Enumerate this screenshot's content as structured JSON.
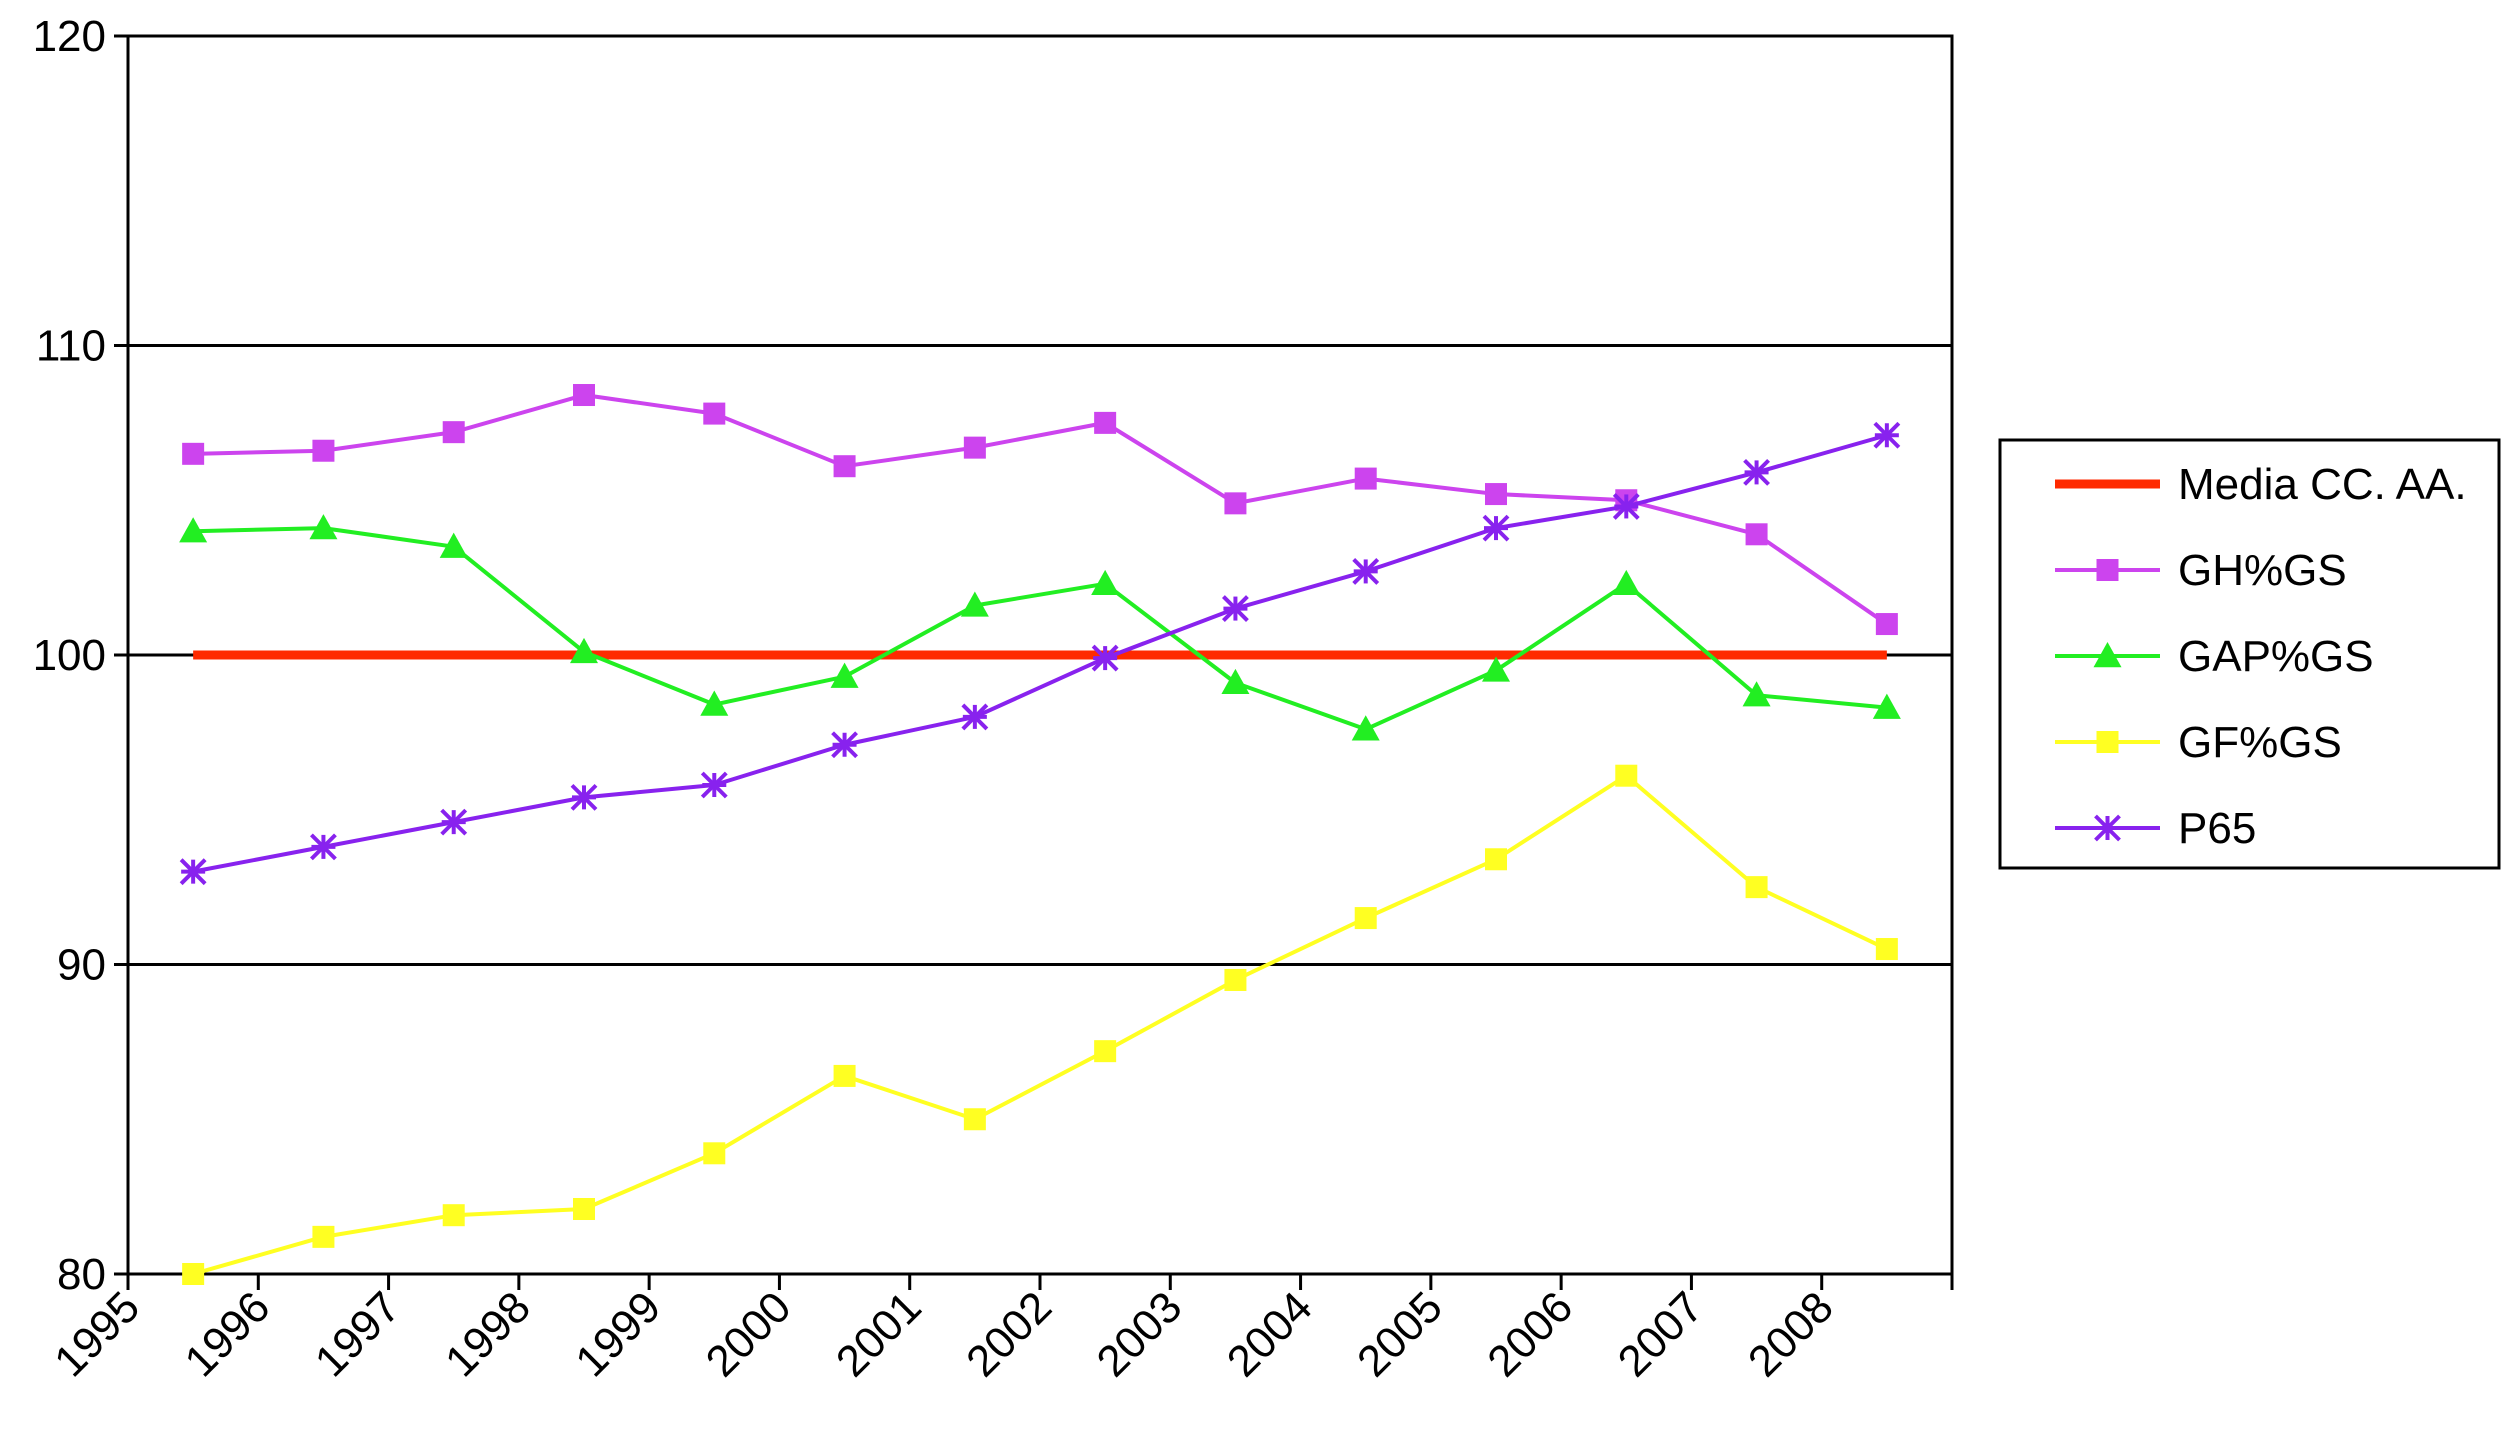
{
  "chart_data": {
    "type": "line",
    "title": "",
    "xlabel": "",
    "ylabel": "",
    "categories": [
      "1995",
      "1996",
      "1997",
      "1998",
      "1999",
      "2000",
      "2001",
      "2002",
      "2003",
      "2004",
      "2005",
      "2006",
      "2007",
      "2008"
    ],
    "ylim": [
      80,
      120
    ],
    "yticks": [
      "80",
      "90",
      "100",
      "110",
      "120"
    ],
    "gridlines_y": [
      90,
      100,
      110
    ],
    "legend_position": "right",
    "series": [
      {
        "name": "Media CC. AA.",
        "marker": "none",
        "color": "#ff2a00",
        "values": [
          100,
          100,
          100,
          100,
          100,
          100,
          100,
          100,
          100,
          100,
          100,
          100,
          100,
          100
        ]
      },
      {
        "name": "GH%GS",
        "marker": "square",
        "color": "#cc44ee",
        "values": [
          106.5,
          106.6,
          107.2,
          108.4,
          107.8,
          106.1,
          106.7,
          107.5,
          104.9,
          105.7,
          105.2,
          105.0,
          103.9,
          101.0
        ]
      },
      {
        "name": "GAP%GS",
        "marker": "triangle",
        "color": "#22ee22",
        "values": [
          104.0,
          104.1,
          103.5,
          100.1,
          98.4,
          99.3,
          101.6,
          102.3,
          99.1,
          97.6,
          99.5,
          102.3,
          98.7,
          98.3
        ]
      },
      {
        "name": "GF%GS",
        "marker": "square",
        "color": "#ffff22",
        "values": [
          79.9,
          81.2,
          81.9,
          82.1,
          83.9,
          86.4,
          85.0,
          87.2,
          89.5,
          91.5,
          93.4,
          96.1,
          92.5,
          90.5
        ]
      },
      {
        "name": "P65",
        "marker": "asterisk",
        "color": "#8822ee",
        "values": [
          93.0,
          93.8,
          94.6,
          95.4,
          95.8,
          97.1,
          98.0,
          99.9,
          101.5,
          102.7,
          104.1,
          104.8,
          105.9,
          107.1
        ]
      }
    ]
  }
}
